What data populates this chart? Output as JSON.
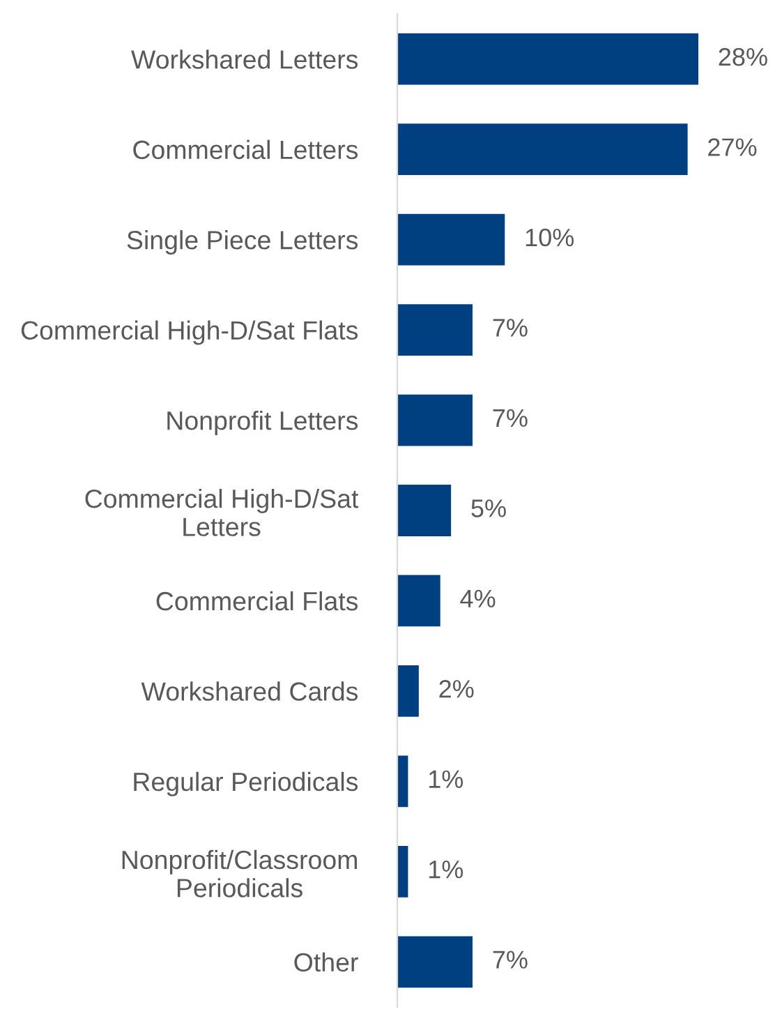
{
  "chart_data": {
    "type": "bar",
    "orientation": "horizontal",
    "categories": [
      "Workshared Letters",
      "Commercial Letters",
      "Single Piece Letters",
      "Commercial High-D/Sat Flats",
      "Nonprofit Letters",
      "Commercial High-D/Sat\nLetters",
      "Commercial Flats",
      "Workshared Cards",
      "Regular Periodicals",
      "Nonprofit/Classroom\nPeriodicals",
      "Other"
    ],
    "values": [
      28,
      27,
      10,
      7,
      7,
      5,
      4,
      2,
      1,
      1,
      7
    ],
    "value_labels": [
      "28%",
      "27%",
      "10%",
      "7%",
      "7%",
      "5%",
      "4%",
      "2%",
      "1%",
      "1%",
      "7%"
    ],
    "color": "#004080"
  }
}
